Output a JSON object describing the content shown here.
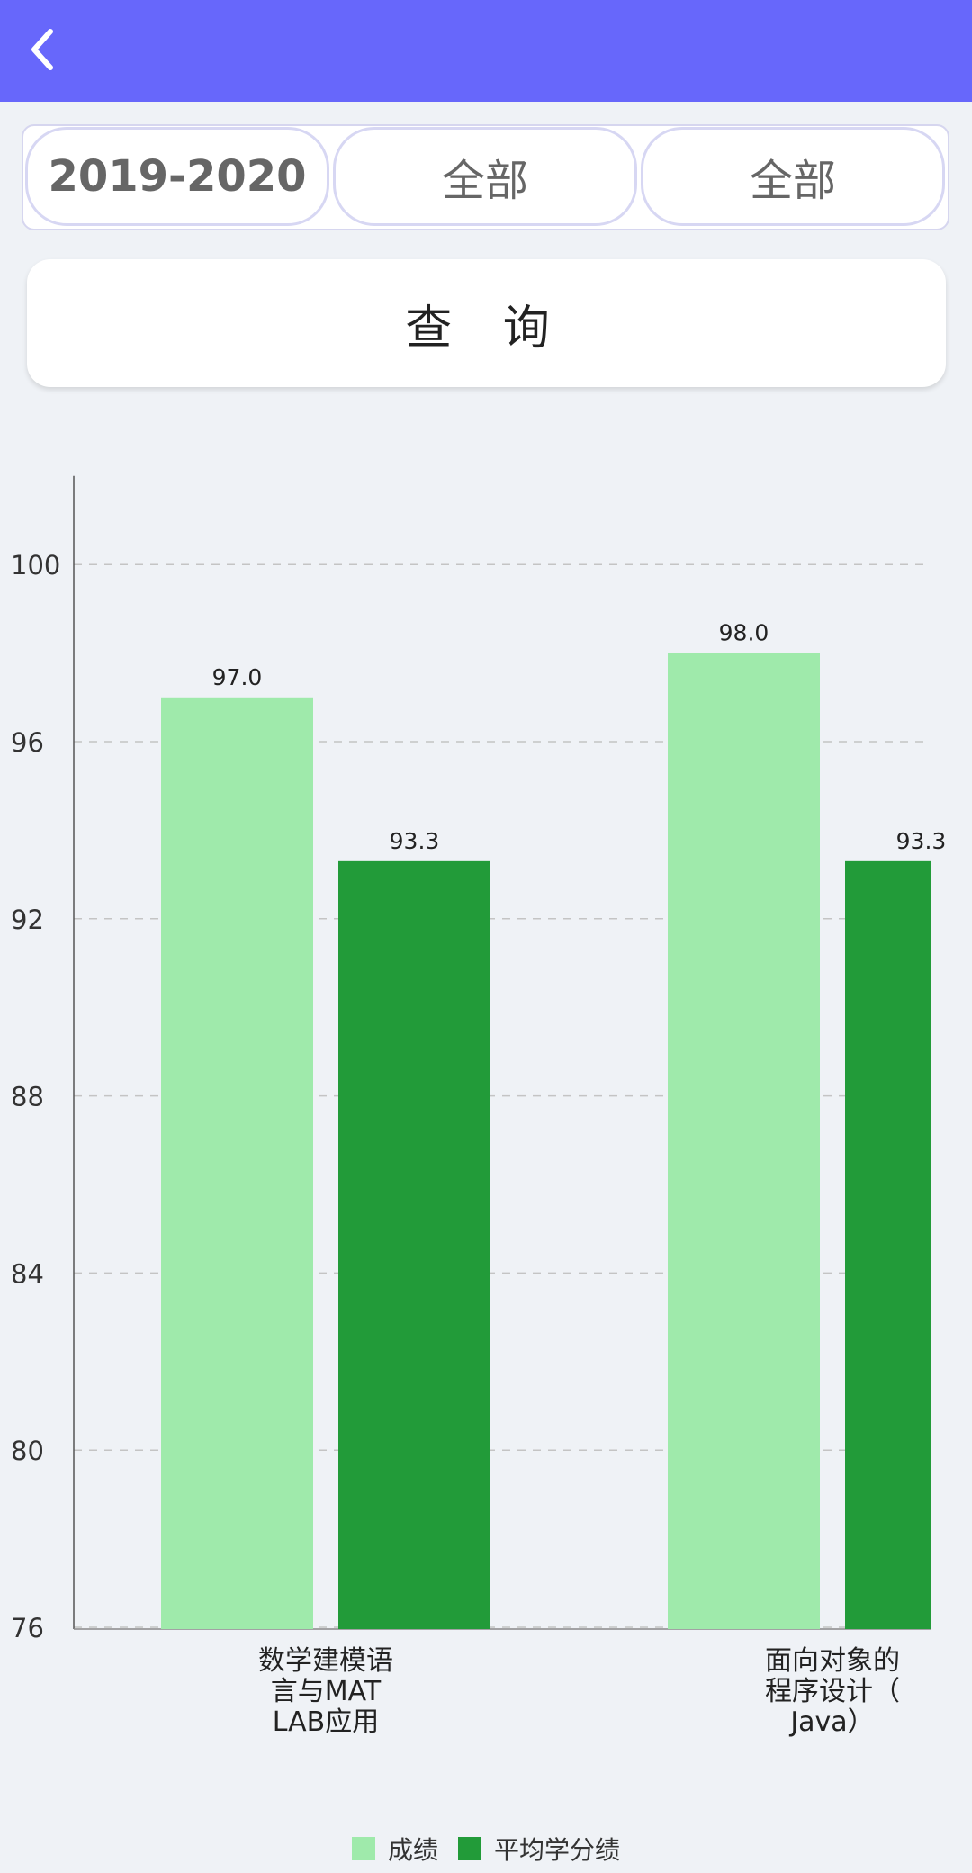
{
  "header": {
    "back_icon": "chevron-left-icon",
    "color": "#6767fb"
  },
  "filters": {
    "year": "2019-2020",
    "semester": "全部",
    "category": "全部"
  },
  "query_button": {
    "label": "查 询"
  },
  "chart_data": {
    "type": "bar",
    "categories": [
      "数学建模语言与MATLAB应用",
      "面向对象的程序设计（Java）"
    ],
    "category_label_lines": [
      [
        "数学建模语",
        "言与MAT",
        "LAB应用"
      ],
      [
        "面向对象的",
        "程序设计（",
        "Java）"
      ]
    ],
    "series": [
      {
        "name": "成绩",
        "values": [
          97.0,
          98.0
        ],
        "labels": [
          "97.0",
          "98.0"
        ],
        "color": "#9feaab"
      },
      {
        "name": "平均学分绩",
        "values": [
          93.3,
          93.3
        ],
        "labels": [
          "93.3",
          "93.3"
        ],
        "color": "#229b39"
      }
    ],
    "ylim": [
      76,
      102
    ],
    "yticks": [
      100,
      96,
      92,
      88,
      84,
      80,
      76
    ],
    "grid": true,
    "legend_position": "bottom-center"
  }
}
